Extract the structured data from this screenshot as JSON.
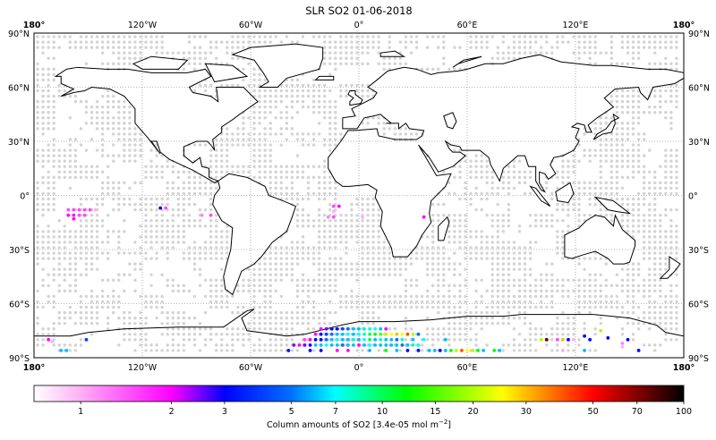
{
  "title": "SLR SO2 01-06-2018",
  "axes": {
    "lon_labels": [
      "180°",
      "120°W",
      "60°W",
      "0°",
      "60°E",
      "120°E",
      "180°"
    ],
    "lon_values": [
      -180,
      -120,
      -60,
      0,
      60,
      120,
      180
    ],
    "lat_labels": [
      "90°N",
      "60°N",
      "30°N",
      "0°",
      "30°S",
      "60°S",
      "90°S"
    ],
    "lat_values": [
      90,
      60,
      30,
      0,
      -30,
      -60,
      -90
    ],
    "projection": "equirectangular",
    "grid": "dotted"
  },
  "colorbar": {
    "label_main": "Column amounts of SO2 [3.4e-05 mol m",
    "label_sup": "−2",
    "label_end": "]",
    "scale": "log",
    "range": [
      0.7,
      100
    ],
    "ticks": [
      1,
      2,
      3,
      5,
      7,
      10,
      15,
      20,
      30,
      50,
      70,
      100
    ],
    "tick_labels": [
      "1",
      "2",
      "3",
      "5",
      "7",
      "10",
      "15",
      "20",
      "30",
      "50",
      "70",
      "100"
    ],
    "stops": [
      {
        "value": 0.7,
        "color": "#ffffff"
      },
      {
        "value": 1,
        "color": "#ffb0f4"
      },
      {
        "value": 2,
        "color": "#ff00ff"
      },
      {
        "value": 3,
        "color": "#0000ff"
      },
      {
        "value": 5,
        "color": "#0070ff"
      },
      {
        "value": 7,
        "color": "#00ffff"
      },
      {
        "value": 12,
        "color": "#00ff00"
      },
      {
        "value": 25,
        "color": "#ffff00"
      },
      {
        "value": 50,
        "color": "#ff0000"
      },
      {
        "value": 100,
        "color": "#000000"
      }
    ]
  },
  "colors": {
    "no_data_dot": "#d3d3d3",
    "coastline": "#000000"
  },
  "map_data": {
    "type": "scatter-map",
    "grid_step_deg": 3,
    "so2_points": [
      [
        -21,
        -74,
        2
      ],
      [
        -18,
        -74,
        2.5
      ],
      [
        -15,
        -74,
        3
      ],
      [
        -12,
        -74,
        3
      ],
      [
        -9,
        -74,
        4
      ],
      [
        -6,
        -74,
        5
      ],
      [
        -3,
        -74,
        6
      ],
      [
        0,
        -74,
        6
      ],
      [
        3,
        -74,
        8
      ],
      [
        6,
        -74,
        8
      ],
      [
        9,
        -74,
        7
      ],
      [
        12,
        -74,
        6
      ],
      [
        15,
        -74,
        2
      ],
      [
        -24,
        -77,
        2
      ],
      [
        -21,
        -77,
        3
      ],
      [
        -18,
        -77,
        4
      ],
      [
        -15,
        -77,
        5
      ],
      [
        -12,
        -77,
        6
      ],
      [
        -9,
        -77,
        6
      ],
      [
        -6,
        -77,
        7
      ],
      [
        -3,
        -77,
        6
      ],
      [
        0,
        -77,
        7
      ],
      [
        3,
        -77,
        8
      ],
      [
        6,
        -77,
        10
      ],
      [
        9,
        -77,
        12
      ],
      [
        12,
        -77,
        15
      ],
      [
        15,
        -77,
        20
      ],
      [
        18,
        -77,
        25
      ],
      [
        21,
        -77,
        30
      ],
      [
        24,
        -77,
        25
      ],
      [
        27,
        -77,
        40
      ],
      [
        30,
        -77,
        20
      ],
      [
        33,
        -77,
        5
      ],
      [
        -30,
        -80,
        1.5
      ],
      [
        -27,
        -80,
        2
      ],
      [
        -24,
        -80,
        3
      ],
      [
        -21,
        -80,
        3
      ],
      [
        -18,
        -80,
        5
      ],
      [
        -15,
        -80,
        6
      ],
      [
        -12,
        -80,
        7
      ],
      [
        -9,
        -80,
        6
      ],
      [
        -6,
        -80,
        6
      ],
      [
        -3,
        -80,
        8
      ],
      [
        0,
        -80,
        6
      ],
      [
        3,
        -80,
        7
      ],
      [
        6,
        -80,
        10
      ],
      [
        9,
        -80,
        6
      ],
      [
        12,
        -80,
        8
      ],
      [
        15,
        -80,
        6
      ],
      [
        18,
        -80,
        6
      ],
      [
        21,
        -80,
        5
      ],
      [
        24,
        -80,
        8
      ],
      [
        30,
        -80,
        6
      ],
      [
        36,
        -80,
        7
      ],
      [
        48,
        -80,
        6
      ],
      [
        -36,
        -83,
        2.5
      ],
      [
        -33,
        -83,
        2
      ],
      [
        -30,
        -83,
        2.5
      ],
      [
        -27,
        -83,
        3
      ],
      [
        -24,
        -83,
        6
      ],
      [
        -21,
        -83,
        6
      ],
      [
        -18,
        -83,
        7
      ],
      [
        -15,
        -83,
        6
      ],
      [
        -12,
        -83,
        6
      ],
      [
        -9,
        -83,
        5
      ],
      [
        -6,
        -83,
        6
      ],
      [
        -3,
        -83,
        6
      ],
      [
        0,
        -83,
        2
      ],
      [
        3,
        -83,
        6
      ],
      [
        6,
        -83,
        7
      ],
      [
        9,
        -83,
        6
      ],
      [
        12,
        -83,
        6
      ],
      [
        15,
        -83,
        6
      ],
      [
        18,
        -83,
        6
      ],
      [
        21,
        -83,
        6
      ],
      [
        24,
        -83,
        5
      ],
      [
        27,
        -83,
        6
      ],
      [
        30,
        -83,
        8
      ],
      [
        33,
        -83,
        7
      ],
      [
        -39,
        -86,
        3
      ],
      [
        -27,
        -86,
        3
      ],
      [
        -21,
        -86,
        3
      ],
      [
        -12,
        -86,
        2
      ],
      [
        -6,
        -86,
        2
      ],
      [
        6,
        -86,
        6
      ],
      [
        15,
        -86,
        12
      ],
      [
        21,
        -86,
        6
      ],
      [
        27,
        -86,
        3
      ],
      [
        33,
        -86,
        3
      ],
      [
        39,
        -86,
        6
      ],
      [
        42,
        -86,
        6
      ],
      [
        45,
        -86,
        3
      ],
      [
        48,
        -86,
        6
      ],
      [
        51,
        -86,
        12
      ],
      [
        54,
        -86,
        20
      ],
      [
        57,
        -86,
        40
      ],
      [
        60,
        -86,
        25
      ],
      [
        63,
        -86,
        20
      ],
      [
        66,
        -86,
        12
      ],
      [
        69,
        -86,
        6
      ],
      [
        75,
        -86,
        12
      ],
      [
        78,
        -86,
        6
      ],
      [
        -161,
        -8,
        1.5
      ],
      [
        -158,
        -8,
        1.5
      ],
      [
        -155,
        -8,
        1.5
      ],
      [
        -152,
        -8,
        1.5
      ],
      [
        -149,
        -8,
        1.5
      ],
      [
        -146,
        -8,
        1
      ],
      [
        -161,
        -11,
        2
      ],
      [
        -158,
        -11,
        2
      ],
      [
        -155,
        -11,
        1.5
      ],
      [
        -152,
        -11,
        1.5
      ],
      [
        -158,
        -13,
        2
      ],
      [
        -110,
        -7,
        3
      ],
      [
        -107,
        -7,
        1.5
      ],
      [
        -87,
        -11,
        1.2
      ],
      [
        -82,
        -11,
        1.5
      ],
      [
        -14,
        -6,
        1.5
      ],
      [
        -11,
        -6,
        2
      ],
      [
        -14,
        -9,
        1
      ],
      [
        -17,
        -12,
        1.2
      ],
      [
        -14,
        -12,
        1.5
      ],
      [
        2,
        -12,
        1
      ],
      [
        36,
        -12,
        2
      ],
      [
        -172,
        -80,
        2
      ],
      [
        -170,
        -81,
        1
      ],
      [
        -165,
        -86,
        6
      ],
      [
        -162,
        -86,
        6
      ],
      [
        -151,
        -80,
        4
      ],
      [
        110,
        -80,
        1.5
      ],
      [
        113,
        -80,
        30
      ],
      [
        116,
        -80,
        3
      ],
      [
        119,
        -80,
        1
      ],
      [
        125,
        -78,
        3
      ],
      [
        128,
        -80,
        3
      ],
      [
        134,
        -75,
        20
      ],
      [
        104,
        -80,
        80
      ],
      [
        101,
        -80,
        20
      ],
      [
        138,
        -79,
        3
      ],
      [
        146,
        -82,
        1.2
      ],
      [
        149,
        -80,
        3
      ],
      [
        146,
        -84,
        1
      ],
      [
        155,
        -86,
        3
      ],
      [
        125,
        -86,
        6
      ],
      [
        113,
        -86,
        1
      ]
    ]
  }
}
